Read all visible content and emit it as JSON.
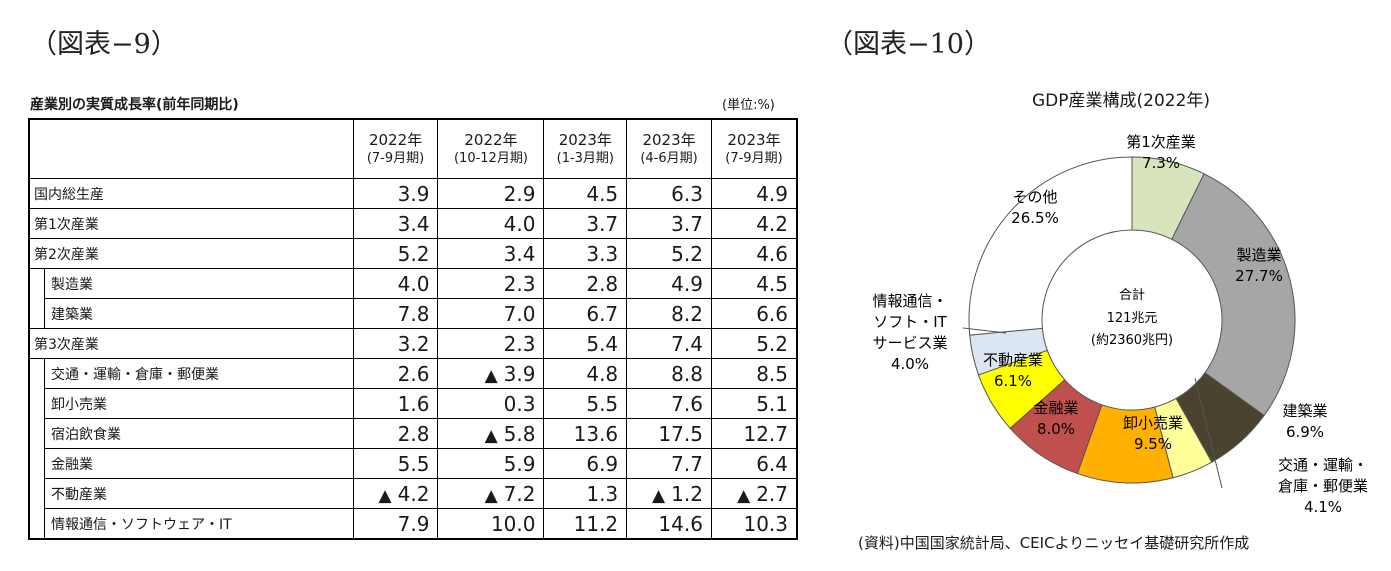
{
  "fig9": {
    "title": "（図表−9）"
  },
  "fig10": {
    "title": "（図表−10）"
  },
  "table": {
    "caption": "産業別の実質成長率(前年同期比)",
    "unit": "(単位:%)",
    "columns": [
      {
        "year": "2022年",
        "period": "(7-9月期)"
      },
      {
        "year": "2022年",
        "period": "(10-12月期)"
      },
      {
        "year": "2023年",
        "period": "(1-3月期)"
      },
      {
        "year": "2023年",
        "period": "(4-6月期)"
      },
      {
        "year": "2023年",
        "period": "(7-9月期)"
      }
    ],
    "rows": [
      {
        "label": "国内総生産",
        "values": [
          "3.9",
          "2.9",
          "4.5",
          "6.3",
          "4.9"
        ],
        "negative": [
          false,
          false,
          false,
          false,
          false
        ]
      },
      {
        "label": "第1次産業",
        "values": [
          "3.4",
          "4.0",
          "3.7",
          "3.7",
          "4.2"
        ],
        "negative": [
          false,
          false,
          false,
          false,
          false
        ]
      },
      {
        "label": "第2次産業",
        "values": [
          "5.2",
          "3.4",
          "3.3",
          "5.2",
          "4.6"
        ],
        "negative": [
          false,
          false,
          false,
          false,
          false
        ]
      },
      {
        "label": "製造業",
        "values": [
          "4.0",
          "2.3",
          "2.8",
          "4.9",
          "4.5"
        ],
        "negative": [
          false,
          false,
          false,
          false,
          false
        ]
      },
      {
        "label": "建築業",
        "values": [
          "7.8",
          "7.0",
          "6.7",
          "8.2",
          "6.6"
        ],
        "negative": [
          false,
          false,
          false,
          false,
          false
        ]
      },
      {
        "label": "第3次産業",
        "values": [
          "3.2",
          "2.3",
          "5.4",
          "7.4",
          "5.2"
        ],
        "negative": [
          false,
          false,
          false,
          false,
          false
        ]
      },
      {
        "label": "交通・運輸・倉庫・郵便業",
        "values": [
          "2.6",
          "3.9",
          "4.8",
          "8.8",
          "8.5"
        ],
        "negative": [
          false,
          true,
          false,
          false,
          false
        ]
      },
      {
        "label": "卸小売業",
        "values": [
          "1.6",
          "0.3",
          "5.5",
          "7.6",
          "5.1"
        ],
        "negative": [
          false,
          false,
          false,
          false,
          false
        ]
      },
      {
        "label": "宿泊飲食業",
        "values": [
          "2.8",
          "5.8",
          "13.6",
          "17.5",
          "12.7"
        ],
        "negative": [
          false,
          true,
          false,
          false,
          false
        ]
      },
      {
        "label": "金融業",
        "values": [
          "5.5",
          "5.9",
          "6.9",
          "7.7",
          "6.4"
        ],
        "negative": [
          false,
          false,
          false,
          false,
          false
        ]
      },
      {
        "label": "不動産業",
        "values": [
          "4.2",
          "7.2",
          "1.3",
          "1.2",
          "2.7"
        ],
        "negative": [
          true,
          true,
          false,
          true,
          true
        ]
      },
      {
        "label": "情報通信・ソフトウェア・IT",
        "values": [
          "7.9",
          "10.0",
          "11.2",
          "14.6",
          "10.3"
        ],
        "negative": [
          false,
          false,
          false,
          false,
          false
        ]
      }
    ],
    "neg_marker": "▲"
  },
  "chart_data": {
    "type": "pie",
    "title": "GDP産業構成(2022年)",
    "center_label": [
      "合計",
      "121兆元",
      "(約2360兆円)"
    ],
    "slices": [
      {
        "name": "第1次産業",
        "value": 7.3,
        "label": "7.3%",
        "color": "#d8e4bc"
      },
      {
        "name": "製造業",
        "value": 27.7,
        "label": "27.7%",
        "color": "#a6a6a6"
      },
      {
        "name": "建築業",
        "value": 6.9,
        "label": "6.9%",
        "color": "#4a4330"
      },
      {
        "name": "交通・運輸・倉庫・郵便業",
        "value": 4.1,
        "label": "4.1%",
        "color": "#ffff99"
      },
      {
        "name": "卸小売業",
        "value": 9.5,
        "label": "9.5%",
        "color": "#ffb000"
      },
      {
        "name": "金融業",
        "value": 8.0,
        "label": "8.0%",
        "color": "#c0504d"
      },
      {
        "name": "不動産業",
        "value": 6.1,
        "label": "6.1%",
        "color": "#ffff00"
      },
      {
        "name": "情報通信・ソフト・ITサービス業",
        "value": 4.0,
        "label": "4.0%",
        "color": "#dce6f2"
      },
      {
        "name": "その他",
        "value": 26.5,
        "label": "26.5%",
        "color": "#ffffff"
      }
    ]
  },
  "source_note": "(資料)中国国家統計局、CEICよりニッセイ基礎研究所作成"
}
